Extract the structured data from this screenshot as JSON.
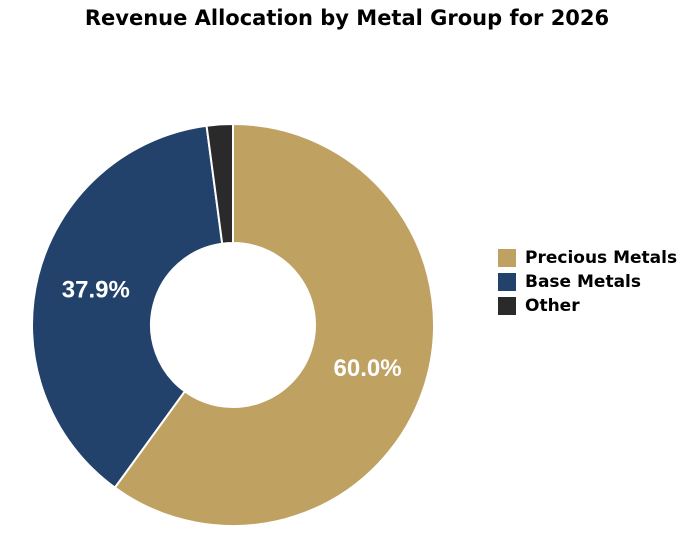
{
  "chart_data": {
    "type": "pie",
    "donut": true,
    "title": "Revenue Allocation by Metal Group for 2026",
    "categories": [
      "Precious Metals",
      "Base Metals",
      "Other"
    ],
    "values": [
      60.0,
      37.9,
      2.1
    ],
    "data_labels": [
      "60.0%",
      "37.9%",
      ""
    ],
    "colors": [
      "#BFA162",
      "#22426B",
      "#2A2A2A"
    ],
    "legend_position": "right"
  }
}
